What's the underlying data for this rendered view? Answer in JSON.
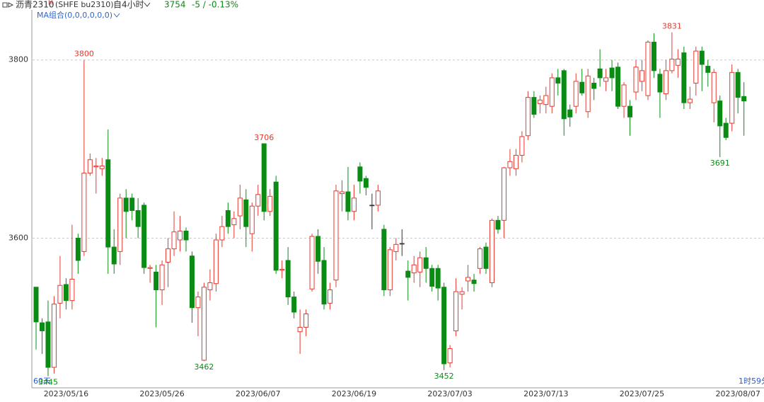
{
  "chart_data": {
    "type": "candlestick",
    "title": "沥青2310",
    "title_mark": "M",
    "subtitle": "(SHFE bu2310)",
    "period": "自4小时",
    "last_price": 3754,
    "change": "-5 / -0.13%",
    "indicator": "MA组合(0,0,0,0,0,0)",
    "footer_left": "60天",
    "footer_right": "1时59分",
    "up_color": "#e8382f",
    "down_color": "#0a8c14",
    "ylim": [
      3432,
      3853
    ],
    "yticks": [
      3600,
      3800
    ],
    "grid": true,
    "categories": [
      null,
      null,
      null,
      null,
      null,
      "2023/05/16",
      null,
      null,
      null,
      null,
      null,
      null,
      null,
      null,
      null,
      null,
      null,
      null,
      null,
      null,
      null,
      "2023/05/26",
      null,
      null,
      null,
      null,
      null,
      null,
      null,
      null,
      null,
      null,
      null,
      null,
      null,
      null,
      null,
      "2023/06/07",
      null,
      null,
      null,
      null,
      null,
      null,
      null,
      null,
      null,
      null,
      null,
      null,
      null,
      null,
      null,
      "2023/06/19",
      null,
      null,
      null,
      null,
      null,
      null,
      null,
      null,
      null,
      null,
      null,
      null,
      null,
      null,
      null,
      "2023/07/03",
      null,
      null,
      null,
      null,
      null,
      null,
      null,
      null,
      null,
      null,
      null,
      null,
      null,
      null,
      null,
      "2023/07/13",
      null,
      null,
      null,
      null,
      null,
      null,
      null,
      null,
      null,
      null,
      null,
      null,
      null,
      null,
      null,
      "2023/07/25",
      null,
      null,
      null,
      null,
      null,
      null,
      null,
      null,
      null,
      null,
      null,
      null,
      null,
      null,
      null,
      "2023/08/07",
      null
    ],
    "open": [
      3545,
      3505,
      3506,
      3455,
      3527,
      3548,
      3530,
      3600,
      3585,
      3673,
      3680,
      3678,
      3688,
      3590,
      3585,
      3645,
      3645,
      3631,
      3637,
      3566,
      3562,
      3542,
      3573,
      3588,
      3598,
      3608,
      3580,
      3522,
      3463,
      3542,
      3549,
      3598,
      3631,
      3615,
      3625,
      3643,
      3605,
      3636,
      3706,
      3630,
      3663,
      3564,
      3575,
      3534,
      3495,
      3500,
      3543,
      3602,
      3575,
      3527,
      3553,
      3650,
      3652,
      3630,
      3680,
      3667,
      3637,
      3637,
      3610,
      3542,
      3585,
      3594,
      3563,
      3561,
      3562,
      3578,
      3566,
      3566,
      3545,
      3460,
      3496,
      3537,
      3552,
      3553,
      3566,
      3590,
      3550,
      3620,
      3620,
      3679,
      3678,
      3693,
      3715,
      3758,
      3751,
      3750,
      3748,
      3780,
      3788,
      3744,
      3748,
      3775,
      3742,
      3774,
      3790,
      3776,
      3791,
      3792,
      3748,
      3748,
      3764,
      3776,
      3760,
      3820,
      3784,
      3762,
      3788,
      3794,
      3808,
      3752,
      3774,
      3810,
      3793,
      3752,
      3754,
      3729,
      3729,
      3786,
      3759
    ],
    "high": [
      3545,
      3510,
      3530,
      3535,
      3580,
      3555,
      3615,
      3605,
      3800,
      3695,
      3690,
      3690,
      3722,
      3610,
      3650,
      3655,
      3650,
      3645,
      3640,
      3570,
      3570,
      3575,
      3600,
      3630,
      3625,
      3612,
      3585,
      3540,
      3550,
      3565,
      3605,
      3625,
      3640,
      3630,
      3660,
      3655,
      3640,
      3660,
      3706,
      3655,
      3670,
      3575,
      3590,
      3540,
      3520,
      3520,
      3605,
      3610,
      3590,
      3550,
      3660,
      3665,
      3680,
      3660,
      3685,
      3670,
      3650,
      3660,
      3615,
      3590,
      3600,
      3610,
      3575,
      3580,
      3585,
      3590,
      3570,
      3570,
      3550,
      3480,
      3555,
      3545,
      3570,
      3560,
      3590,
      3595,
      3622,
      3625,
      3680,
      3700,
      3700,
      3720,
      3765,
      3765,
      3760,
      3770,
      3785,
      3790,
      3790,
      3750,
      3785,
      3790,
      3790,
      3780,
      3812,
      3790,
      3800,
      3797,
      3775,
      3755,
      3800,
      3800,
      3822,
      3830,
      3790,
      3800,
      3831,
      3812,
      3815,
      3770,
      3815,
      3815,
      3800,
      3790,
      3760,
      3735,
      3795,
      3790,
      3775
    ],
    "low": [
      3475,
      3470,
      3445,
      3448,
      3510,
      3520,
      3520,
      3560,
      3580,
      3670,
      3650,
      3670,
      3560,
      3560,
      3570,
      3600,
      3620,
      3600,
      3560,
      3550,
      3500,
      3525,
      3545,
      3580,
      3585,
      3585,
      3505,
      3490,
      3462,
      3530,
      3540,
      3590,
      3605,
      3600,
      3610,
      3590,
      3585,
      3625,
      3620,
      3625,
      3560,
      3555,
      3525,
      3510,
      3470,
      3490,
      3540,
      3560,
      3520,
      3520,
      3545,
      3630,
      3620,
      3620,
      3650,
      3648,
      3610,
      3630,
      3535,
      3535,
      3575,
      3580,
      3530,
      3550,
      3545,
      3550,
      3540,
      3530,
      3452,
      3455,
      3490,
      3520,
      3540,
      3540,
      3560,
      3560,
      3545,
      3605,
      3600,
      3670,
      3670,
      3685,
      3710,
      3735,
      3740,
      3740,
      3740,
      3760,
      3715,
      3725,
      3740,
      3760,
      3735,
      3755,
      3770,
      3765,
      3765,
      3745,
      3735,
      3715,
      3755,
      3765,
      3755,
      3780,
      3735,
      3755,
      3785,
      3780,
      3745,
      3745,
      3760,
      3765,
      3770,
      3730,
      3691,
      3710,
      3720,
      3740,
      3715
    ],
    "close": [
      3506,
      3496,
      3455,
      3526,
      3547,
      3530,
      3554,
      3575,
      3673,
      3688,
      3681,
      3681,
      3590,
      3571,
      3645,
      3630,
      3631,
      3613,
      3567,
      3567,
      3542,
      3570,
      3588,
      3607,
      3608,
      3598,
      3522,
      3534,
      3545,
      3550,
      3598,
      3613,
      3613,
      3622,
      3645,
      3613,
      3636,
      3649,
      3630,
      3647,
      3564,
      3565,
      3534,
      3517,
      3500,
      3515,
      3602,
      3574,
      3526,
      3542,
      3653,
      3652,
      3630,
      3645,
      3664,
      3657,
      3637,
      3653,
      3542,
      3587,
      3593,
      3594,
      3556,
      3570,
      3578,
      3566,
      3546,
      3544,
      3459,
      3476,
      3540,
      3540,
      3556,
      3549,
      3588,
      3566,
      3620,
      3610,
      3679,
      3686,
      3693,
      3714,
      3758,
      3739,
      3755,
      3760,
      3780,
      3774,
      3734,
      3736,
      3776,
      3763,
      3782,
      3768,
      3780,
      3780,
      3780,
      3748,
      3772,
      3736,
      3792,
      3788,
      3820,
      3788,
      3764,
      3788,
      3801,
      3801,
      3752,
      3756,
      3810,
      3795,
      3786,
      3786,
      3726,
      3713,
      3786,
      3758,
      3754
    ],
    "annotations": [
      3800,
      3706,
      3462,
      3452,
      3831,
      3691,
      3445
    ]
  }
}
